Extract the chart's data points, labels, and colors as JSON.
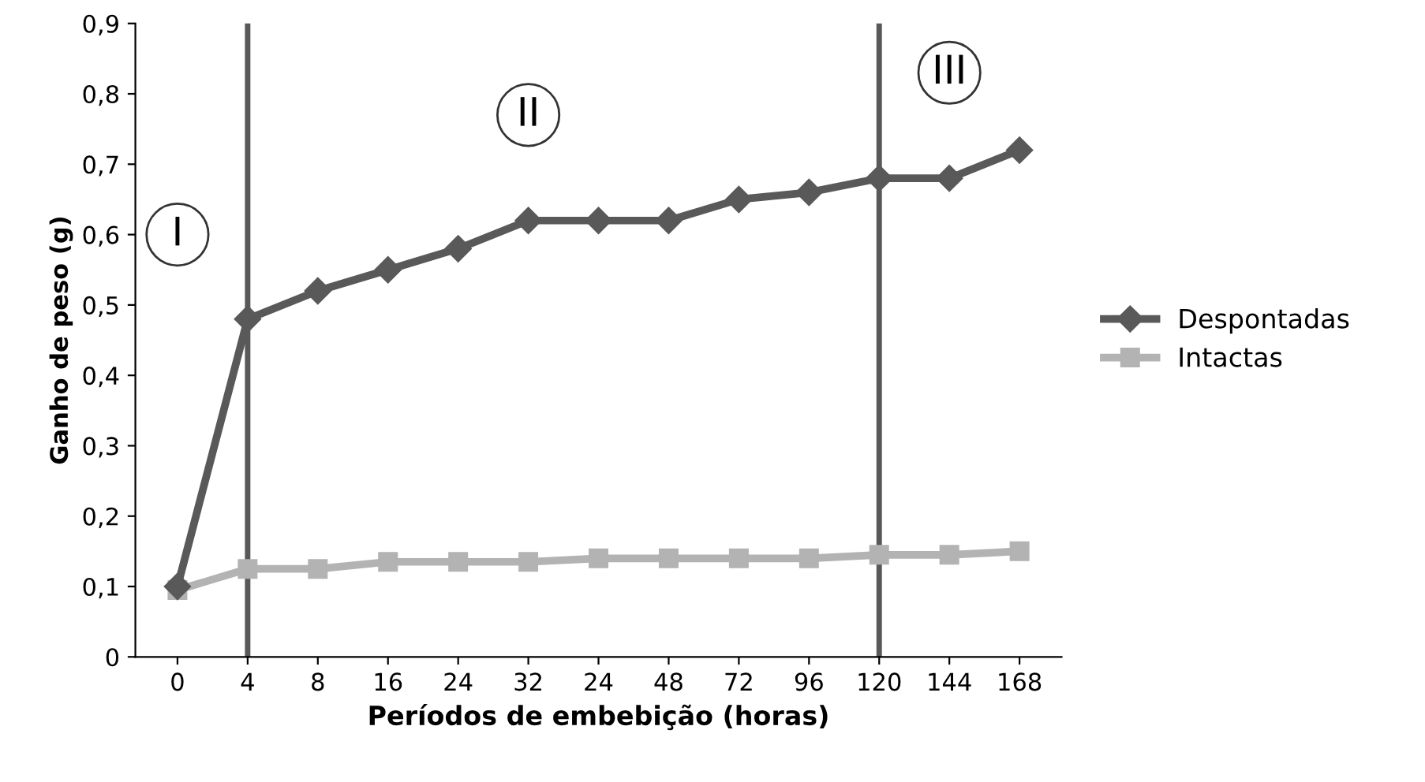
{
  "chart_data": {
    "type": "line",
    "xlabel": "Períodos de embebição (horas)",
    "ylabel": "Ganho de peso (g)",
    "categories": [
      "0",
      "4",
      "8",
      "16",
      "24",
      "32",
      "24",
      "48",
      "72",
      "96",
      "120",
      "144",
      "168"
    ],
    "series": [
      {
        "name": "Despontadas",
        "color": "#595959",
        "marker": "diamond",
        "values": [
          0.1,
          0.48,
          0.52,
          0.55,
          0.58,
          0.62,
          0.62,
          0.62,
          0.65,
          0.66,
          0.68,
          0.68,
          0.72
        ]
      },
      {
        "name": "Intactas",
        "color": "#b3b3b3",
        "marker": "square",
        "values": [
          0.095,
          0.125,
          0.125,
          0.135,
          0.135,
          0.135,
          0.14,
          0.14,
          0.14,
          0.14,
          0.145,
          0.145,
          0.15
        ]
      }
    ],
    "ylim": [
      0,
      0.9
    ],
    "yticks": [
      0,
      {
        "value": 0.1,
        "label": "0,1"
      },
      {
        "value": 0.2,
        "label": "0,2"
      },
      {
        "value": 0.3,
        "label": "0,3"
      },
      {
        "value": 0.4,
        "label": "0,4"
      },
      {
        "value": 0.5,
        "label": "0,5"
      },
      {
        "value": 0.6,
        "label": "0,6"
      },
      {
        "value": 0.7,
        "label": "0,7"
      },
      {
        "value": 0.8,
        "label": "0,8"
      },
      {
        "value": 0.9,
        "label": "0,9"
      }
    ],
    "ref_lines": [
      {
        "axis": "x",
        "value": "4",
        "color": "#595959"
      },
      {
        "axis": "x",
        "value": "120",
        "color": "#595959"
      }
    ],
    "annotations": [
      {
        "text": "I",
        "x": "0",
        "y": 0.6
      },
      {
        "text": "II",
        "x": "32",
        "y": 0.77
      },
      {
        "text": "III",
        "x": "144",
        "y": 0.83
      }
    ],
    "grid": false,
    "legend": "right"
  }
}
